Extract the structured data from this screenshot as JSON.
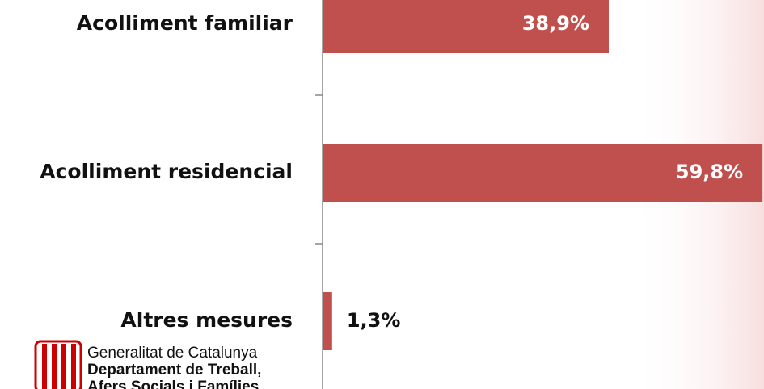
{
  "chart_data": {
    "type": "bar",
    "orientation": "horizontal",
    "categories": [
      "Acolliment familiar",
      "Acolliment residencial",
      "Altres mesures"
    ],
    "values": [
      38.9,
      59.8,
      1.3
    ],
    "value_labels": [
      "38,9%",
      "59,8%",
      "1,3%"
    ],
    "color": "#c0504d",
    "xlim": [
      0,
      60
    ]
  },
  "logo": {
    "line1": "Generalitat de Catalunya",
    "line2": "Departament de Treball,",
    "line3": "Afers Socials i Famílies"
  }
}
